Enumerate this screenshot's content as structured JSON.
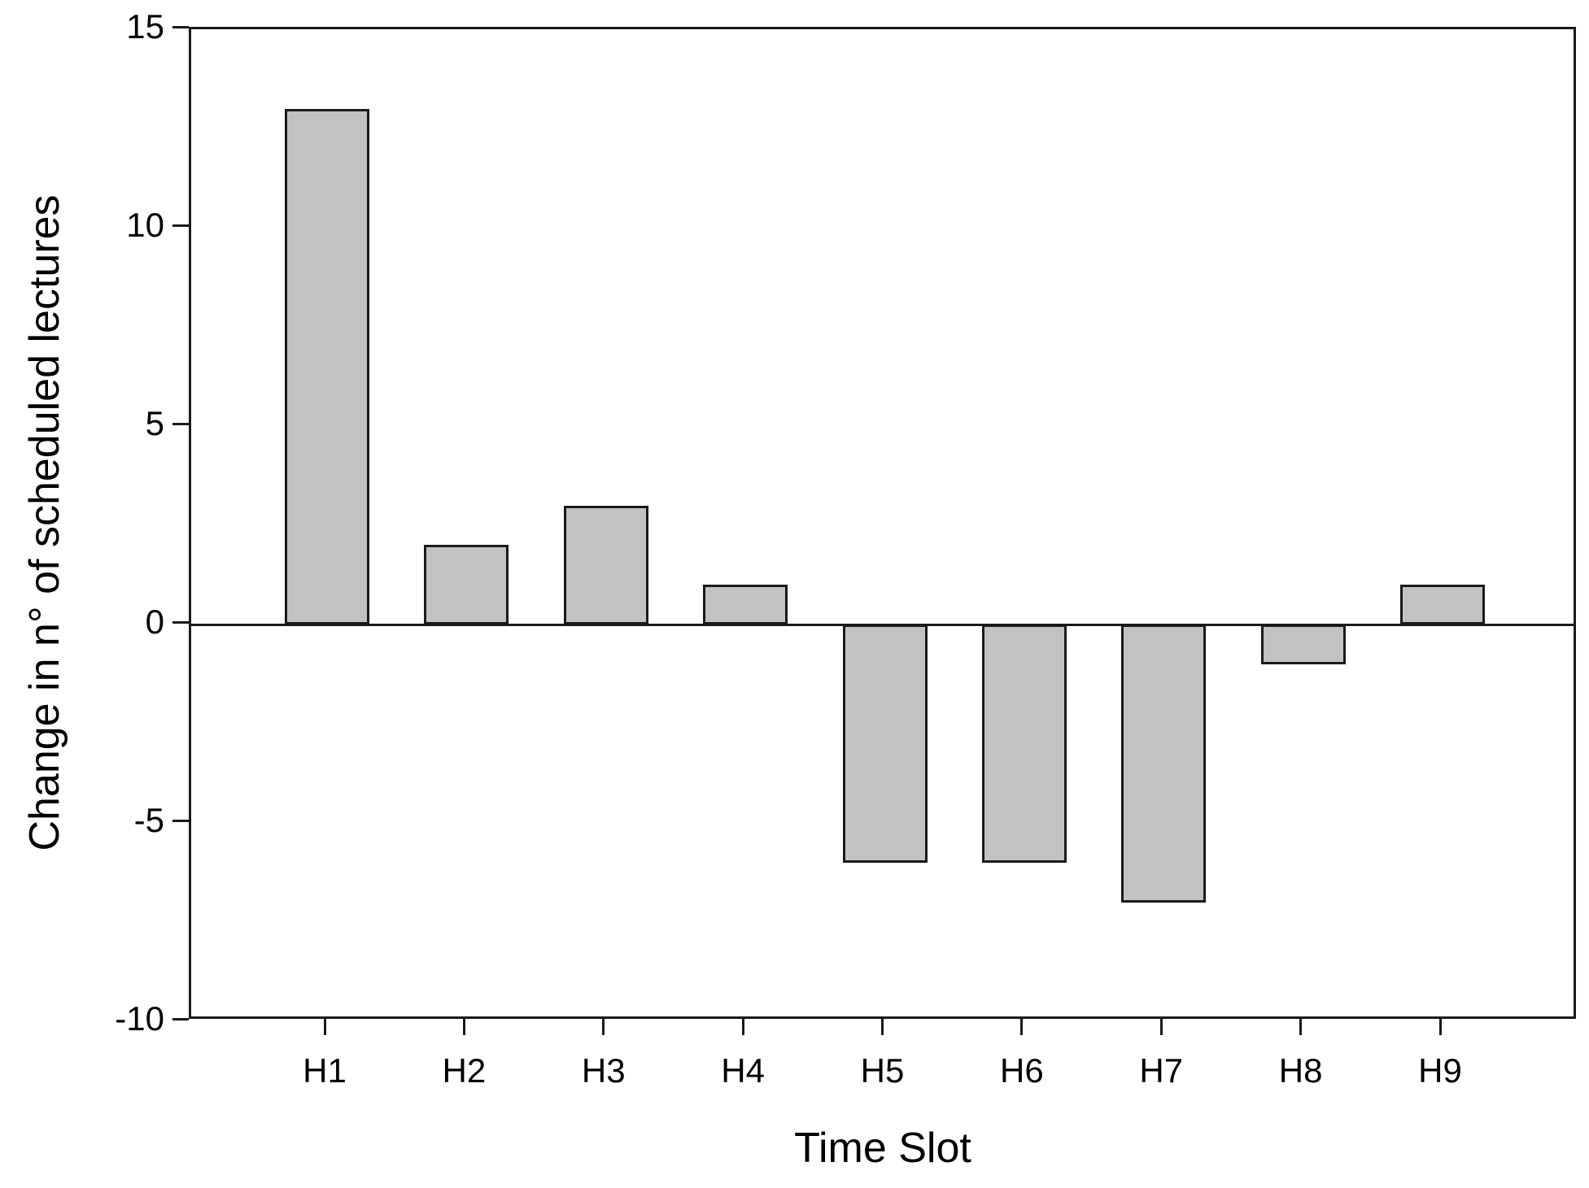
{
  "chart_data": {
    "type": "bar",
    "categories": [
      "H1",
      "H2",
      "H3",
      "H4",
      "H5",
      "H6",
      "H7",
      "H8",
      "H9"
    ],
    "values": [
      13,
      2,
      3,
      1,
      -6,
      -6,
      -7,
      -1,
      1
    ],
    "title": "",
    "xlabel": "Time Slot",
    "ylabel": "Change in n° of scheduled lectures",
    "ylim": [
      -10,
      15
    ],
    "yticks": [
      15,
      10,
      5,
      0,
      -5,
      -10
    ],
    "grid": false,
    "legend_position": "none",
    "bar_fill_color": "#c2c2c2",
    "bar_border_color": "#1a1a1a",
    "axis_color": "#1a1a1a",
    "text_color": "#000000",
    "background_color": "#ffffff"
  }
}
